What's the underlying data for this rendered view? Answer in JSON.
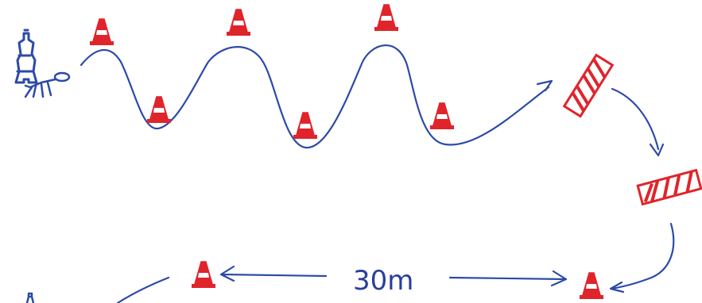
{
  "colors": {
    "ink_blue": "#2c4aa8",
    "ink_red": "#e0242b",
    "paper": "#ffffff"
  },
  "icons": {
    "cone": "traffic-cone-icon",
    "hurdle": "hurdle-bar-icon",
    "handler": "handler-figure-icon",
    "dog": "dog-icon"
  },
  "distance_label": "30m",
  "cones_count": 9,
  "hurdles_count": 2
}
